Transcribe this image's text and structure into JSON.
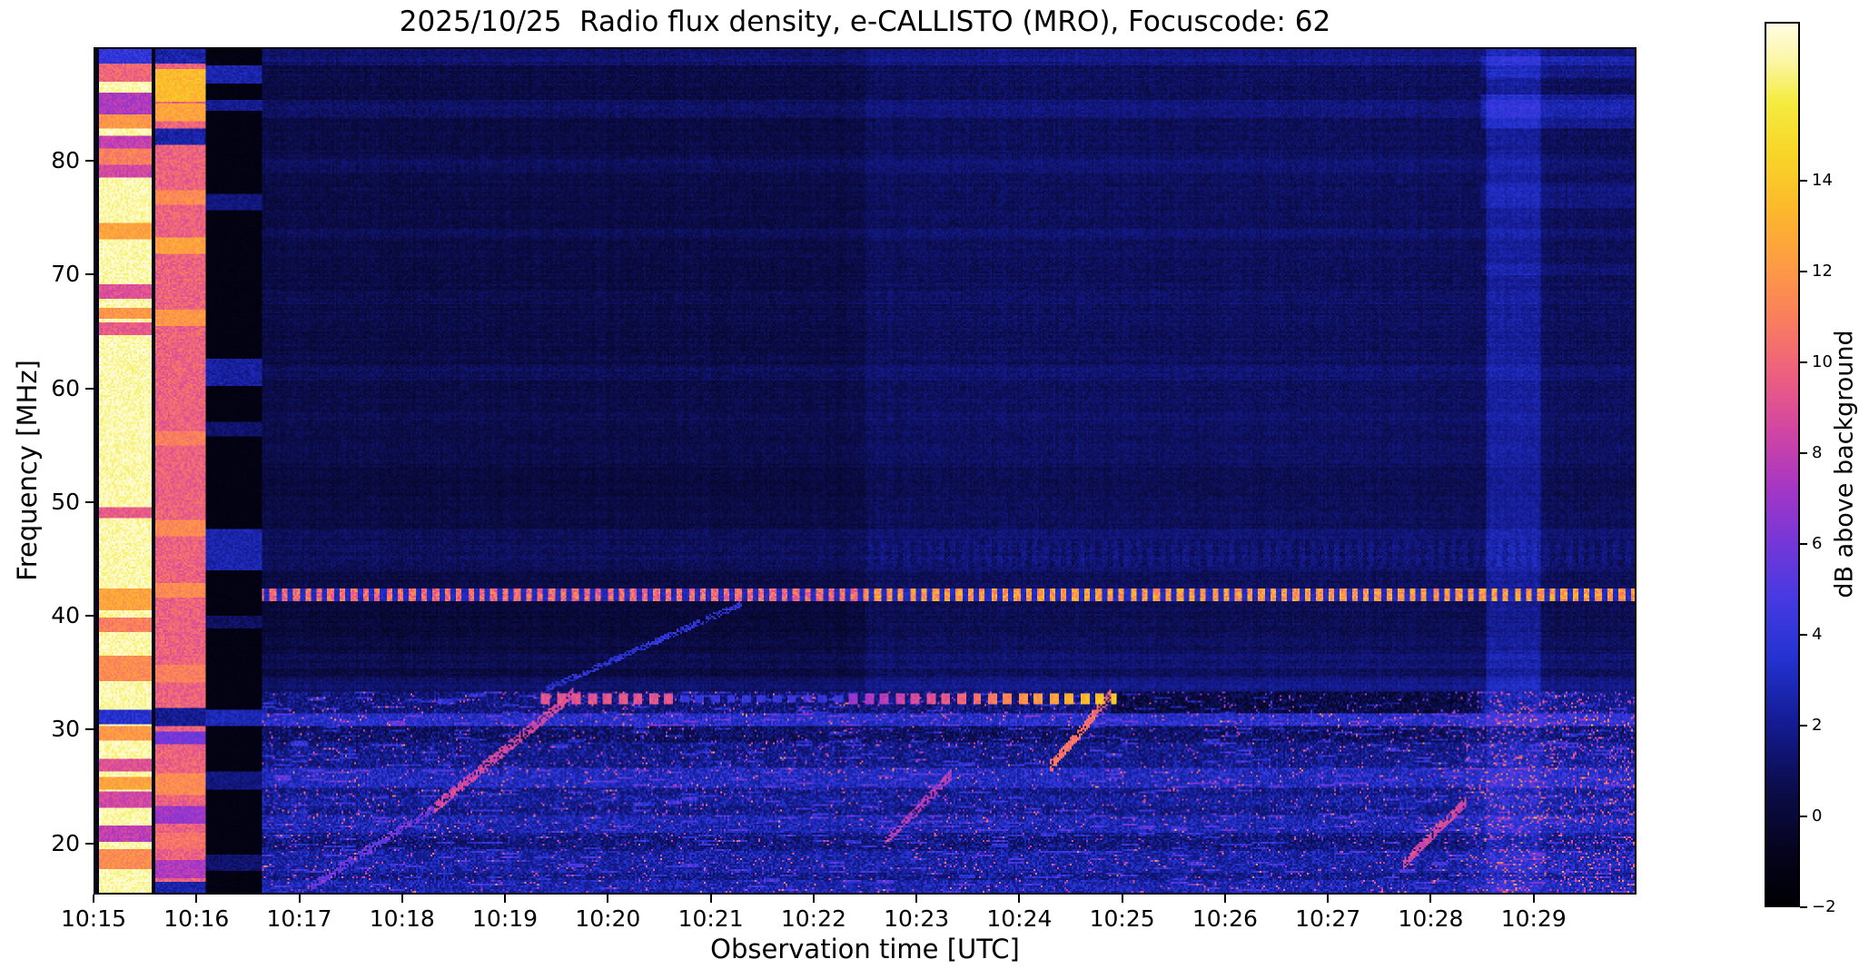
{
  "chart_data": {
    "type": "heatmap",
    "title": "2025/10/25  Radio flux density, e-CALLISTO (MRO), Focuscode: 62",
    "xlabel": "Observation time [UTC]",
    "ylabel": "Frequency [MHz]",
    "x_tick_labels": [
      "10:15",
      "10:16",
      "10:17",
      "10:18",
      "10:19",
      "10:20",
      "10:21",
      "10:22",
      "10:23",
      "10:24",
      "10:25",
      "10:26",
      "10:27",
      "10:28",
      "10:29"
    ],
    "x_range_minutes": [
      0,
      15
    ],
    "y_tick_values": [
      20,
      30,
      40,
      50,
      60,
      70,
      80
    ],
    "freq_range_mhz": [
      15.5,
      90
    ],
    "grid": false,
    "colorbar": {
      "label": "dB above background",
      "range": [
        -2,
        17.5
      ],
      "tick_values": [
        -2,
        0,
        2,
        4,
        6,
        8,
        10,
        12,
        14
      ],
      "tick_labels": [
        "−2",
        "0",
        "2",
        "4",
        "6",
        "8",
        "10",
        "12",
        "14"
      ],
      "colormap_stops": [
        {
          "v": -2.0,
          "color": "#000004"
        },
        {
          "v": -0.8,
          "color": "#05041e"
        },
        {
          "v": 0.5,
          "color": "#0b0c48"
        },
        {
          "v": 2.0,
          "color": "#141b91"
        },
        {
          "v": 3.5,
          "color": "#2433d2"
        },
        {
          "v": 4.8,
          "color": "#473ae2"
        },
        {
          "v": 6.0,
          "color": "#7437d8"
        },
        {
          "v": 7.2,
          "color": "#a436c6"
        },
        {
          "v": 8.5,
          "color": "#d246a3"
        },
        {
          "v": 9.8,
          "color": "#ee617e"
        },
        {
          "v": 11.0,
          "color": "#fa7f5d"
        },
        {
          "v": 12.2,
          "color": "#fd9c43"
        },
        {
          "v": 13.4,
          "color": "#fcb92c"
        },
        {
          "v": 14.6,
          "color": "#f8d527"
        },
        {
          "v": 15.8,
          "color": "#f5ec42"
        },
        {
          "v": 16.7,
          "color": "#fbf7a8"
        },
        {
          "v": 17.5,
          "color": "#fffde4"
        }
      ]
    },
    "features": {
      "calibration": {
        "left_dark_t": 0.04,
        "white_band": {
          "t": [
            0.04,
            0.54
          ],
          "base": 16.8,
          "stripes": [
            {
              "f": [
                88.8,
                90.0
              ],
              "v": 4.0
            },
            {
              "f": [
                87.2,
                88.8
              ],
              "v": 10.0
            },
            {
              "f": [
                84.2,
                86.2
              ],
              "v": 7.5
            },
            {
              "f": [
                83.0,
                84.2
              ],
              "v": 12.0
            },
            {
              "f": [
                81.2,
                82.4
              ],
              "v": 8.0
            },
            {
              "f": [
                79.8,
                81.2
              ],
              "v": 11.0
            },
            {
              "f": [
                78.6,
                79.8
              ],
              "v": 8.5
            },
            {
              "f": [
                73.2,
                74.6
              ],
              "v": 12.5
            },
            {
              "f": [
                68.0,
                69.2
              ],
              "v": 9.0
            },
            {
              "f": [
                66.2,
                67.2
              ],
              "v": 12.0
            },
            {
              "f": [
                64.8,
                65.8
              ],
              "v": 9.5
            },
            {
              "f": [
                48.6,
                49.6
              ],
              "v": 9.5
            },
            {
              "f": [
                40.5,
                42.3
              ],
              "v": 12.5
            },
            {
              "f": [
                38.6,
                39.8
              ],
              "v": 11.0
            },
            {
              "f": [
                34.2,
                36.4
              ],
              "v": 11.5
            },
            {
              "f": [
                30.4,
                31.6
              ],
              "v": 3.5
            },
            {
              "f": [
                29.0,
                30.2
              ],
              "v": 12.0
            },
            {
              "f": [
                26.2,
                27.4
              ],
              "v": 9.0
            },
            {
              "f": [
                24.6,
                25.8
              ],
              "v": 12.5
            },
            {
              "f": [
                23.0,
                24.4
              ],
              "v": 8.5
            },
            {
              "f": [
                20.0,
                21.4
              ],
              "v": 8.0
            },
            {
              "f": [
                17.6,
                19.4
              ],
              "v": 11.5
            }
          ]
        },
        "pink_band": {
          "t": [
            0.58,
            1.08
          ],
          "base": 9.8,
          "stripes": [
            {
              "f": [
                88.8,
                90.0
              ],
              "v": 2.5
            },
            {
              "f": [
                85.4,
                88.2
              ],
              "v": 13.5
            },
            {
              "f": [
                83.6,
                85.2
              ],
              "v": 12.5
            },
            {
              "f": [
                81.6,
                83.0
              ],
              "v": 2.5
            },
            {
              "f": [
                76.2,
                77.6
              ],
              "v": 11.5
            },
            {
              "f": [
                72.0,
                73.4
              ],
              "v": 12.5
            },
            {
              "f": [
                65.6,
                67.0
              ],
              "v": 12.0
            },
            {
              "f": [
                55.0,
                56.2
              ],
              "v": 11.0
            },
            {
              "f": [
                47.0,
                48.4
              ],
              "v": 11.5
            },
            {
              "f": [
                41.6,
                42.8
              ],
              "v": 11.5
            },
            {
              "f": [
                34.0,
                35.6
              ],
              "v": 11.0
            },
            {
              "f": [
                30.2,
                31.8
              ],
              "v": 2.0
            },
            {
              "f": [
                28.6,
                29.8
              ],
              "v": 6.0
            },
            {
              "f": [
                24.2,
                26.0
              ],
              "v": 11.5
            },
            {
              "f": [
                21.6,
                23.2
              ],
              "v": 7.0
            },
            {
              "f": [
                19.4,
                20.8
              ],
              "v": 10.5
            },
            {
              "f": [
                16.8,
                18.4
              ],
              "v": 7.5
            },
            {
              "f": [
                15.5,
                16.4
              ],
              "v": 2.5
            }
          ]
        },
        "gap": {
          "t": [
            1.08,
            1.62
          ],
          "stripes": [
            {
              "f": [
                87.0,
                88.6
              ],
              "v": 2.6
            },
            {
              "f": [
                84.6,
                85.6
              ],
              "v": 2.0
            },
            {
              "f": [
                75.8,
                77.2
              ],
              "v": 1.6
            },
            {
              "f": [
                60.2,
                62.6
              ],
              "v": 2.3
            },
            {
              "f": [
                55.8,
                57.0
              ],
              "v": 1.2
            },
            {
              "f": [
                44.0,
                47.6
              ],
              "v": 2.6
            },
            {
              "f": [
                38.8,
                40.0
              ],
              "v": 1.0
            },
            {
              "f": [
                30.2,
                31.6
              ],
              "v": 2.8
            },
            {
              "f": [
                24.6,
                26.2
              ],
              "v": 1.6
            },
            {
              "f": [
                17.4,
                18.8
              ],
              "v": 1.2
            }
          ]
        }
      },
      "region_step_t": 7.5,
      "noisy_band_top_mhz": 33.2,
      "rfi_line": {
        "freq_mhz": 41.8,
        "half_width": 0.5,
        "dash_period_s": 6.8,
        "value_db": [
          9,
          14
        ]
      },
      "main_bands": [
        {
          "f": [
            88.6,
            90.0
          ],
          "dv": 0.85
        },
        {
          "f": [
            84.0,
            85.6
          ],
          "dv": 0.55
        },
        {
          "f": [
            79.0,
            80.6
          ],
          "dv": 0.4
        },
        {
          "f": [
            73.0,
            74.2
          ],
          "dv": 0.35
        },
        {
          "f": [
            67.4,
            68.6
          ],
          "dv": 0.3
        },
        {
          "f": [
            60.8,
            62.2
          ],
          "dv": 0.4
        },
        {
          "f": [
            56.8,
            57.8
          ],
          "dv": 0.25
        },
        {
          "f": [
            44.0,
            47.6
          ],
          "dv": 0.45
        },
        {
          "f": [
            35.4,
            36.6
          ],
          "dv": 0.35
        },
        {
          "f": [
            33.2,
            34.6
          ],
          "dv": 0.85
        },
        {
          "f": [
            47.6,
            53.0
          ],
          "dv": -0.15
        },
        {
          "f": [
            38.6,
            41.2
          ],
          "dv": -0.2
        }
      ],
      "right_stripes_t": 13.5,
      "right_bands": [
        {
          "f": [
            83.0,
            86.0
          ],
          "dv": 1.2
        },
        {
          "f": [
            87.4,
            89.3
          ],
          "dv": 0.9
        },
        {
          "f": [
            76.0,
            78.2
          ],
          "dv": 0.7
        },
        {
          "f": [
            70.0,
            71.0
          ],
          "dv": 0.5
        }
      ],
      "noisy_rows": [
        {
          "f": [
            30.2,
            31.4
          ],
          "dv": 1.6
        },
        {
          "f": [
            28.8,
            30.2
          ],
          "dv": -0.8
        },
        {
          "f": [
            31.4,
            33.2
          ],
          "dv": -0.3
        },
        {
          "f": [
            24.8,
            26.6
          ],
          "dv": 1.2
        },
        {
          "f": [
            23.2,
            24.2
          ],
          "dv": 0.4
        },
        {
          "f": [
            20.8,
            22.3
          ],
          "dv": 0.9
        },
        {
          "f": [
            19.4,
            20.4
          ],
          "dv": -0.3
        },
        {
          "f": [
            17.3,
            19.2
          ],
          "dv": 0.6
        },
        {
          "f": [
            15.5,
            16.6
          ],
          "dv": 0.8
        }
      ],
      "dark_strip": {
        "t": [
          9.9,
          13.5
        ],
        "f": [
          31.3,
          33.2
        ],
        "dv": -1.3
      },
      "bright_column": {
        "t": [
          13.55,
          14.08
        ],
        "dv": 1.3
      },
      "storm_t": [
        13.35,
        15.0
      ],
      "dash_features": [
        {
          "t": [
            4.35,
            5.65
          ],
          "f": [
            32.2,
            33.15
          ],
          "period_s": 9,
          "v0": 7.5,
          "v1": 8.5,
          "ramp": false
        },
        {
          "t": [
            7.35,
            9.95
          ],
          "f": [
            32.2,
            33.15
          ],
          "period_s": 9,
          "v0": 6.0,
          "v1": 13.5,
          "ramp": true
        },
        {
          "t": [
            5.65,
            7.35
          ],
          "f": [
            32.3,
            33.0
          ],
          "period_s": 9,
          "v0": 3.0,
          "v1": 3.5,
          "ramp": false
        }
      ],
      "diagonal_streaks": [
        {
          "t": [
            2.1,
            3.3
          ],
          "f": [
            16.0,
            23.0
          ],
          "w": 0.4,
          "v": 4.5
        },
        {
          "t": [
            3.3,
            4.65
          ],
          "f": [
            23.0,
            33.0
          ],
          "w": 0.5,
          "v": 7.5
        },
        {
          "t": [
            7.7,
            8.35
          ],
          "f": [
            20.0,
            26.0
          ],
          "w": 0.45,
          "v": 6.5
        },
        {
          "t": [
            9.3,
            9.9
          ],
          "f": [
            26.5,
            33.0
          ],
          "w": 0.5,
          "v": 9.5
        },
        {
          "t": [
            12.75,
            13.35
          ],
          "f": [
            18.0,
            23.5
          ],
          "w": 0.45,
          "v": 7.5
        },
        {
          "t": [
            4.4,
            6.3
          ],
          "f": [
            33.5,
            41.0
          ],
          "w": 0.28,
          "v": 2.6
        }
      ]
    }
  }
}
